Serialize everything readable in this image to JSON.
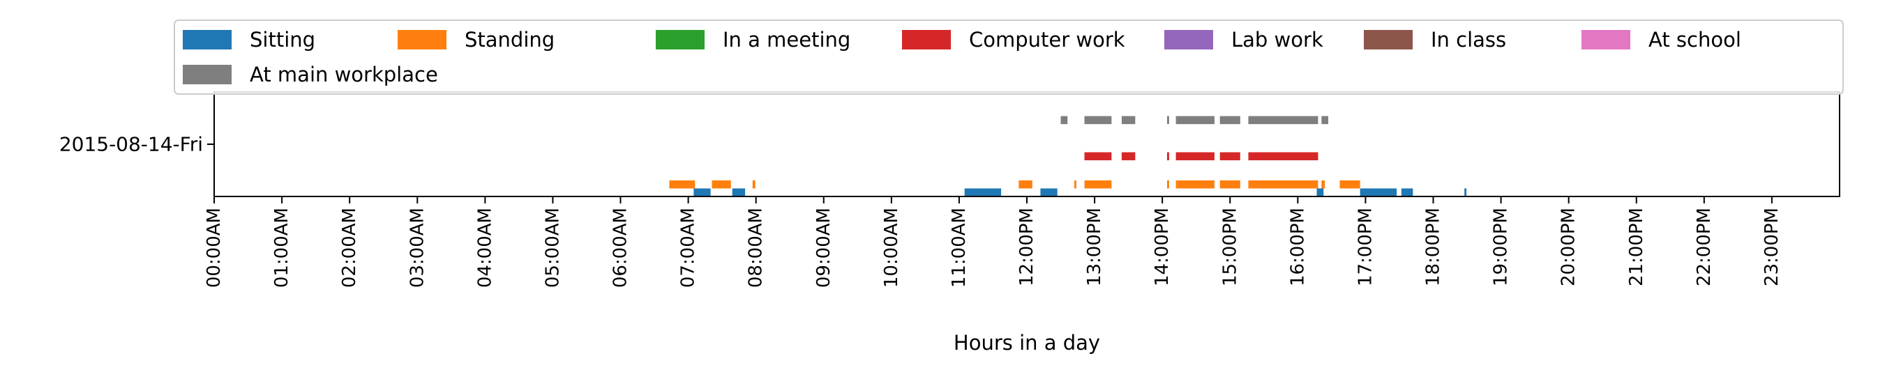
{
  "chart_data": {
    "type": "timeline",
    "xlabel": "Hours in a day",
    "xlim": [
      0,
      24
    ],
    "x_ticks": [
      {
        "value": 0,
        "label": "00:00AM"
      },
      {
        "value": 1,
        "label": "01:00AM"
      },
      {
        "value": 2,
        "label": "02:00AM"
      },
      {
        "value": 3,
        "label": "03:00AM"
      },
      {
        "value": 4,
        "label": "04:00AM"
      },
      {
        "value": 5,
        "label": "05:00AM"
      },
      {
        "value": 6,
        "label": "06:00AM"
      },
      {
        "value": 7,
        "label": "07:00AM"
      },
      {
        "value": 8,
        "label": "08:00AM"
      },
      {
        "value": 9,
        "label": "09:00AM"
      },
      {
        "value": 10,
        "label": "10:00AM"
      },
      {
        "value": 11,
        "label": "11:00AM"
      },
      {
        "value": 12,
        "label": "12:00PM"
      },
      {
        "value": 13,
        "label": "13:00PM"
      },
      {
        "value": 14,
        "label": "14:00PM"
      },
      {
        "value": 15,
        "label": "15:00PM"
      },
      {
        "value": 16,
        "label": "16:00PM"
      },
      {
        "value": 17,
        "label": "17:00PM"
      },
      {
        "value": 18,
        "label": "18:00PM"
      },
      {
        "value": 19,
        "label": "19:00PM"
      },
      {
        "value": 20,
        "label": "20:00PM"
      },
      {
        "value": 21,
        "label": "21:00PM"
      },
      {
        "value": 22,
        "label": "22:00PM"
      },
      {
        "value": 23,
        "label": "23:00PM"
      }
    ],
    "y_ticks": [
      {
        "value": 0,
        "label": "2015-08-14-Fri"
      }
    ],
    "ylim": [
      -0.52,
      0.52
    ],
    "legend_position": "top, spanning full width",
    "series": [
      {
        "name": "Sitting",
        "color": "#1f77b4",
        "offset": -0.52,
        "height": 0.08,
        "intervals": [
          [
            7.08,
            7.33
          ],
          [
            7.65,
            7.84
          ],
          [
            11.08,
            11.62
          ],
          [
            12.2,
            12.45
          ],
          [
            16.28,
            16.38
          ],
          [
            16.92,
            17.46
          ],
          [
            17.53,
            17.7
          ],
          [
            18.46,
            18.49
          ]
        ]
      },
      {
        "name": "Standing",
        "color": "#ff7f0e",
        "offset": -0.44,
        "height": 0.08,
        "intervals": [
          [
            6.72,
            7.1
          ],
          [
            7.35,
            7.63
          ],
          [
            7.95,
            7.99
          ],
          [
            11.88,
            12.08
          ],
          [
            12.7,
            12.73
          ],
          [
            12.85,
            13.25
          ],
          [
            14.07,
            14.1
          ],
          [
            14.2,
            14.77
          ],
          [
            14.85,
            15.15
          ],
          [
            15.27,
            16.3
          ],
          [
            16.35,
            16.4
          ],
          [
            16.62,
            16.92
          ]
        ]
      },
      {
        "name": "In a meeting",
        "color": "#2ca02c",
        "offset": -0.34,
        "height": 0.08,
        "intervals": []
      },
      {
        "name": "Computer work",
        "color": "#d62728",
        "offset": -0.16,
        "height": 0.08,
        "intervals": [
          [
            12.85,
            13.25
          ],
          [
            13.4,
            13.6
          ],
          [
            14.07,
            14.1
          ],
          [
            14.2,
            14.77
          ],
          [
            14.85,
            15.15
          ],
          [
            15.27,
            16.3
          ]
        ]
      },
      {
        "name": "Lab work",
        "color": "#9467bd",
        "offset": -0.08,
        "height": 0.08,
        "intervals": []
      },
      {
        "name": "In class",
        "color": "#8c564b",
        "offset": 0.0,
        "height": 0.08,
        "intervals": []
      },
      {
        "name": "At school",
        "color": "#e377c2",
        "offset": 0.08,
        "height": 0.08,
        "intervals": []
      },
      {
        "name": "At main workplace",
        "color": "#7f7f7f",
        "offset": 0.2,
        "height": 0.08,
        "intervals": [
          [
            12.5,
            12.6
          ],
          [
            12.85,
            13.25
          ],
          [
            13.4,
            13.6
          ],
          [
            14.07,
            14.1
          ],
          [
            14.2,
            14.77
          ],
          [
            14.85,
            15.15
          ],
          [
            15.27,
            16.3
          ],
          [
            16.35,
            16.45
          ]
        ]
      }
    ]
  }
}
